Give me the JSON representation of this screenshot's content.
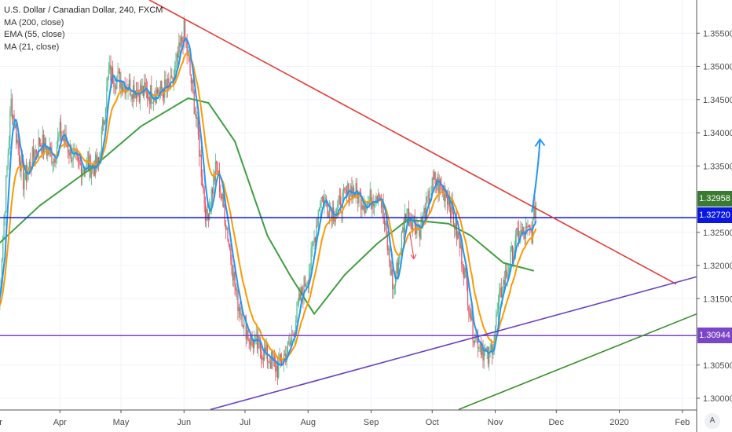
{
  "legend": {
    "title": "U.S. Dollar / Canadian Dollar, 240, FXCM",
    "indicators": [
      "MA (200, close)",
      "EMA (55, close)",
      "MA (21, close)"
    ]
  },
  "auto_button": "A",
  "colors": {
    "up": "#53b987",
    "down": "#eb4d5c",
    "ma200": "#3f9f41",
    "ema55": "#ff9800",
    "ma21": "#2196f3",
    "resistance": "#e53935",
    "support_purple": "#6a3fc4",
    "support_green": "#3a8f2a",
    "hline_blue": "#0a17e0",
    "hline_purple": "#7b45c8",
    "last_price": "#3b7a31"
  },
  "chart_data": {
    "type": "candlestick",
    "title": "U.S. Dollar / Canadian Dollar, 240, FXCM",
    "x_origin": "2019-03-01",
    "x_unit": "days",
    "xlim": [
      -1,
      342
    ],
    "ylim": [
      1.2983,
      1.36
    ],
    "x_ticks": [
      {
        "day": -1,
        "label": "Mar"
      },
      {
        "day": 31,
        "label": "Apr"
      },
      {
        "day": 61,
        "label": "May"
      },
      {
        "day": 92,
        "label": "Jun"
      },
      {
        "day": 122,
        "label": "Jul"
      },
      {
        "day": 153,
        "label": "Aug"
      },
      {
        "day": 184,
        "label": "Sep"
      },
      {
        "day": 214,
        "label": "Oct"
      },
      {
        "day": 245,
        "label": "Nov"
      },
      {
        "day": 275,
        "label": "Dec"
      },
      {
        "day": 306,
        "label": "2020"
      },
      {
        "day": 337,
        "label": "Feb"
      }
    ],
    "y_ticks": [
      "1.30000",
      "1.30500",
      "1.31500",
      "1.32000",
      "1.32500",
      "1.33500",
      "1.34000",
      "1.34500",
      "1.35000",
      "1.35500"
    ],
    "price_path": [
      [
        1,
        1.3138
      ],
      [
        3,
        1.3245
      ],
      [
        7,
        1.3446
      ],
      [
        13,
        1.3328
      ],
      [
        21,
        1.3387
      ],
      [
        28,
        1.3363
      ],
      [
        31,
        1.34
      ],
      [
        40,
        1.335
      ],
      [
        50,
        1.335
      ],
      [
        55,
        1.349
      ],
      [
        65,
        1.347
      ],
      [
        75,
        1.3458
      ],
      [
        86,
        1.347
      ],
      [
        92,
        1.3553
      ],
      [
        98,
        1.3422
      ],
      [
        103,
        1.3269
      ],
      [
        108,
        1.335
      ],
      [
        113,
        1.3257
      ],
      [
        118,
        1.315
      ],
      [
        124,
        1.3091
      ],
      [
        132,
        1.3067
      ],
      [
        138,
        1.3044
      ],
      [
        144,
        1.3079
      ],
      [
        149,
        1.315
      ],
      [
        154,
        1.3198
      ],
      [
        159,
        1.3304
      ],
      [
        166,
        1.328
      ],
      [
        174,
        1.3316
      ],
      [
        182,
        1.3292
      ],
      [
        188,
        1.3316
      ],
      [
        195,
        1.3162
      ],
      [
        201,
        1.328
      ],
      [
        208,
        1.3257
      ],
      [
        215,
        1.3328
      ],
      [
        222,
        1.3304
      ],
      [
        229,
        1.3209
      ],
      [
        234,
        1.3103
      ],
      [
        242,
        1.3056
      ],
      [
        248,
        1.3162
      ],
      [
        256,
        1.3245
      ],
      [
        263,
        1.325
      ],
      [
        265,
        1.3296
      ]
    ],
    "ma200": [
      [
        1,
        1.3233
      ],
      [
        21,
        1.329
      ],
      [
        48,
        1.335
      ],
      [
        71,
        1.341
      ],
      [
        94,
        1.3452
      ],
      [
        104,
        1.3445
      ],
      [
        117,
        1.3387
      ],
      [
        133,
        1.3245
      ],
      [
        144,
        1.3186
      ],
      [
        156,
        1.3127
      ],
      [
        171,
        1.3186
      ],
      [
        187,
        1.3233
      ],
      [
        202,
        1.3269
      ],
      [
        222,
        1.3263
      ],
      [
        233,
        1.3245
      ],
      [
        249,
        1.3204
      ],
      [
        264,
        1.3192
      ]
    ],
    "price_labels": {
      "last": "1.32958",
      "blue_line": "1.32720",
      "purple_line": "1.30944"
    },
    "horizontal_lines": [
      {
        "price": 1.3272,
        "color": "hline_blue"
      },
      {
        "price": 1.30944,
        "color": "hline_purple"
      }
    ],
    "trend_lines": [
      {
        "name": "resistance",
        "from": [
          75,
          1.36
        ],
        "to": [
          334,
          1.3172
        ]
      },
      {
        "name": "support_purple",
        "from": [
          105,
          1.2983
        ],
        "to": [
          344,
          1.3183
        ]
      },
      {
        "name": "support_green",
        "from": [
          227,
          1.2983
        ],
        "to": [
          344,
          1.3127
        ]
      }
    ],
    "projection_arrow": [
      [
        263,
        1.328
      ],
      [
        266,
        1.334
      ],
      [
        267,
        1.339
      ]
    ],
    "small_arrow": [
      [
        203,
        1.325
      ],
      [
        205,
        1.321
      ]
    ]
  }
}
